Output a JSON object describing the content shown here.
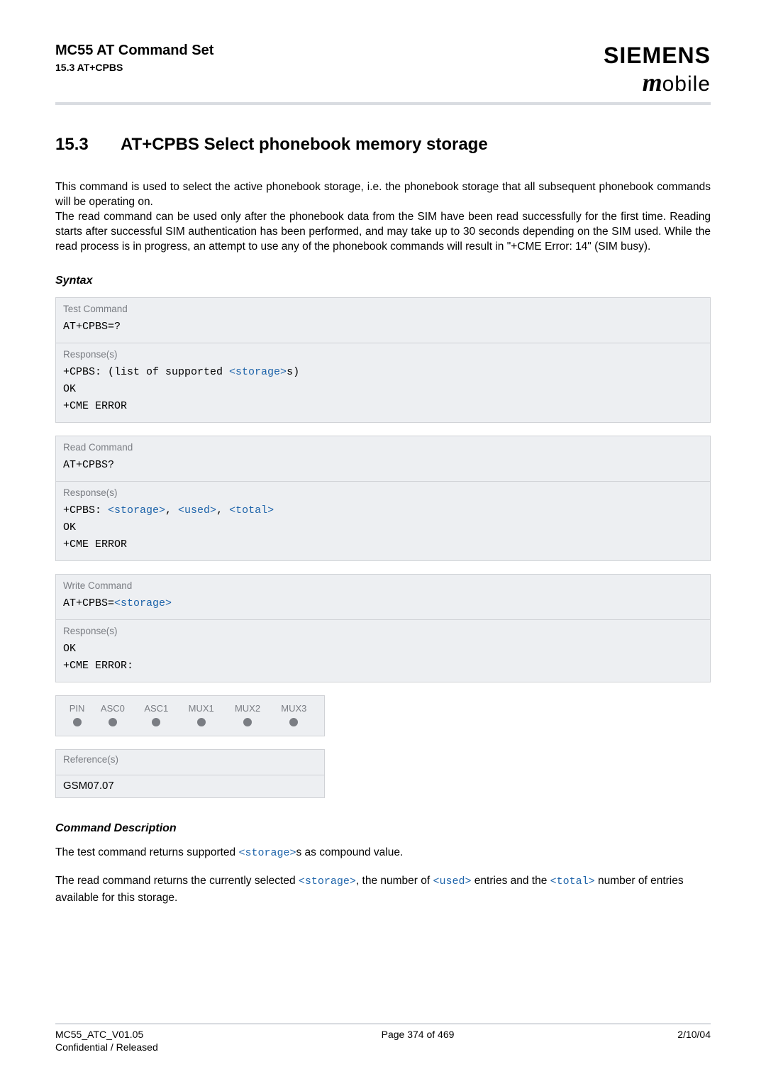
{
  "header": {
    "doc_title": "MC55 AT Command Set",
    "doc_sub": "15.3 AT+CPBS",
    "logo_main": "SIEMENS",
    "logo_sub_m": "m",
    "logo_sub_rest": "obile"
  },
  "section": {
    "number": "15.3",
    "title": "AT+CPBS   Select phonebook memory storage"
  },
  "intro": {
    "p1": "This command is used to select the active phonebook storage, i.e. the phonebook storage that all subsequent phonebook commands will be operating on.",
    "p2": "The read command can be used only after the phonebook data from the SIM have been read successfully for the first time. Reading starts after successful SIM authentication has been performed, and may take up to 30 seconds depending on the SIM used. While the read process is in progress, an attempt to use any of the phonebook commands will result in \"+CME Error: 14\" (SIM busy)."
  },
  "labels": {
    "syntax": "Syntax",
    "test_command": "Test Command",
    "read_command": "Read Command",
    "write_command": "Write Command",
    "responses": "Response(s)",
    "references": "Reference(s)",
    "cmd_desc": "Command Description"
  },
  "test_cmd": {
    "cmd": "AT+CPBS=?",
    "resp_prefix": "+CPBS: ",
    "resp_open": "(list of supported ",
    "storage": "<storage>",
    "resp_close": "s)",
    "ok": "OK",
    "cme": "+CME ERROR"
  },
  "read_cmd": {
    "cmd": "AT+CPBS?",
    "resp_prefix": "+CPBS: ",
    "storage": "<storage>",
    "comma1": ", ",
    "used": "<used>",
    "comma2": ", ",
    "total": "<total>",
    "ok": "OK",
    "cme": "+CME ERROR"
  },
  "write_cmd": {
    "cmd_prefix": "AT+CPBS=",
    "storage": "<storage>",
    "ok": "OK",
    "cme": "+CME ERROR:"
  },
  "support_table": {
    "headers": [
      "PIN",
      "ASC0",
      "ASC1",
      "MUX1",
      "MUX2",
      "MUX3"
    ]
  },
  "reference": {
    "value": "GSM07.07"
  },
  "description": {
    "p1_a": "The test command returns supported ",
    "p1_b": "<storage>",
    "p1_c": "s as compound value.",
    "p2_a": "The read command returns the currently selected ",
    "p2_b": "<storage>",
    "p2_c": ", the number of ",
    "p2_d": "<used>",
    "p2_e": " entries and the ",
    "p2_f": "<total>",
    "p2_g": " number of entries available for this storage."
  },
  "footer": {
    "left": "MC55_ATC_V01.05",
    "conf": "Confidential / Released",
    "center": "Page 374 of 469",
    "right": "2/10/04"
  },
  "colors": {
    "param": "#1e64aa",
    "box_bg": "#edeff2",
    "box_border": "#d0d2d6",
    "rule": "#d9dce1",
    "muted": "#7a7d83"
  }
}
